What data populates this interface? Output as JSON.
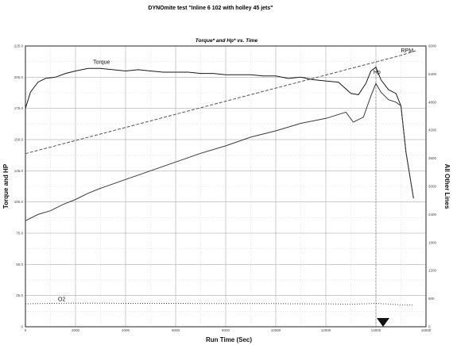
{
  "page_title": "DYNOmite test \"Inline 6 102 with holley 45 jets\"",
  "chart_data": {
    "type": "line",
    "title": "Torque* and Hp* vs. Time",
    "xlabel": "Run Time (Sec)",
    "ylabel_left": "Torque and HP",
    "ylabel_right": "All Other Lines",
    "xlim": [
      0,
      16000
    ],
    "ylim_left": [
      0,
      225
    ],
    "ylim_right": [
      0,
      6000
    ],
    "x_ticks": [
      0,
      2000,
      4000,
      6000,
      8000,
      10000,
      12000,
      14000,
      16000
    ],
    "left_ticks": [
      0,
      25,
      50,
      75,
      100,
      125,
      150,
      175,
      200,
      225
    ],
    "left_tick_labels": [
      "0",
      "25.0",
      "50.0",
      "75.0",
      "100.0",
      "125.0",
      "150.0",
      "175.0",
      "200.0",
      "225.0"
    ],
    "right_ticks": [
      0,
      600,
      1200,
      1800,
      2400,
      3000,
      3600,
      4200,
      4800,
      5400,
      6000
    ],
    "right_tick_labels": [
      "0",
      "600",
      "1200",
      "1800",
      "2400",
      "3000",
      "3600",
      "4200",
      "4800",
      "5400",
      "6000"
    ],
    "grid": true,
    "series": [
      {
        "name": "Torque",
        "axis": "left",
        "style": "solid",
        "color": "#1a1a1a",
        "x": [
          0,
          200,
          500,
          800,
          1200,
          1600,
          2000,
          2500,
          3000,
          3500,
          4000,
          4500,
          5000,
          5500,
          6000,
          6500,
          7000,
          7500,
          8000,
          8500,
          9000,
          9500,
          10000,
          10500,
          11000,
          11500,
          12000,
          12500,
          13000,
          13300,
          13600,
          13800,
          14000,
          14200,
          14500,
          14800,
          15000,
          15200,
          15500
        ],
        "y": [
          175,
          188,
          196,
          199,
          200,
          203,
          205,
          207,
          207,
          206,
          205,
          206,
          205,
          204,
          204,
          204,
          203,
          203,
          202,
          202,
          202,
          201,
          201,
          199,
          200,
          198,
          197,
          196,
          187,
          186,
          195,
          205,
          208,
          198,
          190,
          187,
          177,
          140,
          103
        ]
      },
      {
        "name": "HP",
        "axis": "left",
        "style": "solid",
        "color": "#3a3a3a",
        "x": [
          0,
          500,
          1000,
          1500,
          2000,
          2500,
          3000,
          4000,
          5000,
          6000,
          7000,
          8000,
          9000,
          10000,
          11000,
          12000,
          12800,
          13100,
          13500,
          13800,
          14000,
          14200,
          14500,
          14800,
          15000,
          15200,
          15500
        ],
        "y": [
          85,
          90,
          93,
          98,
          102,
          107,
          111,
          118,
          125,
          132,
          139,
          145,
          152,
          157,
          163,
          167,
          172,
          164,
          168,
          185,
          195,
          188,
          182,
          180,
          177,
          140,
          103
        ]
      },
      {
        "name": "RPM",
        "axis": "right",
        "style": "dashed",
        "color": "#555555",
        "x": [
          0,
          2000,
          4000,
          6000,
          8000,
          10000,
          12000,
          13000,
          14000,
          15000,
          15600
        ],
        "y": [
          3700,
          3980,
          4260,
          4540,
          4820,
          5100,
          5380,
          5520,
          5660,
          5800,
          5900
        ]
      },
      {
        "name": "O2",
        "axis": "right",
        "style": "dotted",
        "color": "#444444",
        "x": [
          0,
          1000,
          2000,
          3000,
          4000,
          5000,
          6000,
          7000,
          8000,
          9000,
          10000,
          11000,
          12000,
          13000,
          14000,
          15000,
          15500
        ],
        "y": [
          490,
          500,
          505,
          505,
          500,
          500,
          500,
          495,
          495,
          495,
          495,
          490,
          490,
          480,
          500,
          470,
          465
        ]
      }
    ],
    "annotations": [
      {
        "text": "Torque",
        "series": "Torque"
      },
      {
        "text": "Hp",
        "series": "HP"
      },
      {
        "text": "RPM",
        "series": "RPM"
      },
      {
        "text": "O2",
        "series": "O2"
      }
    ],
    "marker_x": 14000
  }
}
